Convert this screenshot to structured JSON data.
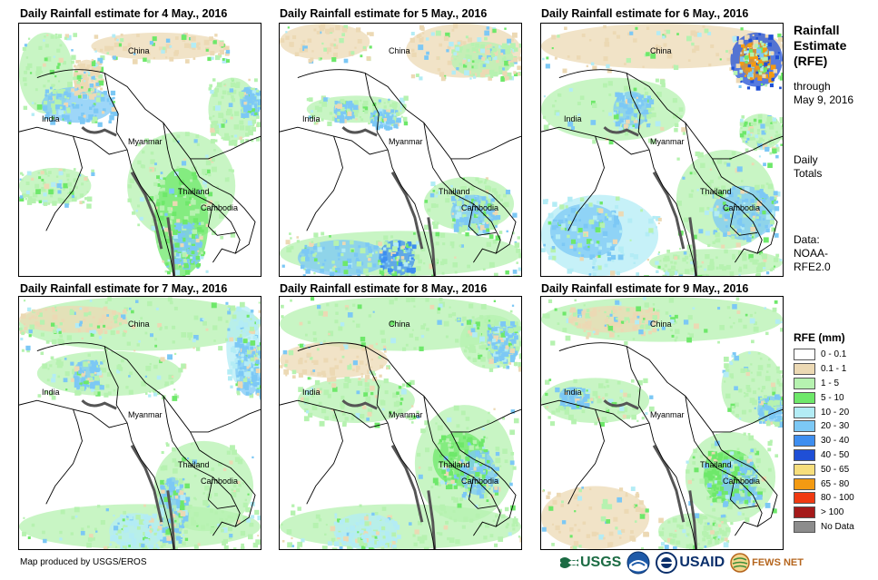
{
  "panels": [
    {
      "title": "Daily Rainfall estimate for 4 May., 2016",
      "labels": {
        "china": "China",
        "india": "India",
        "myanmar": "Myanmar",
        "thailand": "Thailand",
        "cambodia": "Cambodia"
      }
    },
    {
      "title": "Daily Rainfall estimate for 5 May., 2016",
      "labels": {
        "china": "China",
        "india": "India",
        "myanmar": "Myanmar",
        "thailand": "Thailand",
        "cambodia": "Cambodia"
      }
    },
    {
      "title": "Daily Rainfall estimate for 6 May., 2016",
      "labels": {
        "china": "China",
        "india": "India",
        "myanmar": "Myanmar",
        "thailand": "Thailand",
        "cambodia": "Cambodia"
      }
    },
    {
      "title": "Daily Rainfall estimate for 7 May., 2016",
      "labels": {
        "china": "China",
        "india": "India",
        "myanmar": "Myanmar",
        "thailand": "Thailand",
        "cambodia": "Cambodia"
      }
    },
    {
      "title": "Daily Rainfall estimate for 8 May., 2016",
      "labels": {
        "china": "China",
        "india": "India",
        "myanmar": "Myanmar",
        "thailand": "Thailand",
        "cambodia": "Cambodia"
      }
    },
    {
      "title": "Daily Rainfall estimate for 9 May., 2016",
      "labels": {
        "china": "China",
        "india": "India",
        "myanmar": "Myanmar",
        "thailand": "Thailand",
        "cambodia": "Cambodia"
      }
    }
  ],
  "sidebar": {
    "title_line1": "Rainfall",
    "title_line2": "Estimate",
    "title_line3": "(RFE)",
    "through_label": "through",
    "through_date": "May 9, 2016",
    "totals_line1": "Daily",
    "totals_line2": "Totals",
    "data_line1": "Data:",
    "data_line2": "NOAA-",
    "data_line3": "RFE2.0"
  },
  "legend": {
    "title": "RFE (mm)",
    "items": [
      {
        "label": "0 - 0.1",
        "color": "#ffffff"
      },
      {
        "label": "0.1 - 1",
        "color": "#ecd9b4"
      },
      {
        "label": "1 - 5",
        "color": "#b6f2b0"
      },
      {
        "label": "5 - 10",
        "color": "#6ee86a"
      },
      {
        "label": "10 - 20",
        "color": "#b3ecf5"
      },
      {
        "label": "20 - 30",
        "color": "#7cc8f5"
      },
      {
        "label": "30 - 40",
        "color": "#3e8ef0"
      },
      {
        "label": "40 - 50",
        "color": "#1f4fd6"
      },
      {
        "label": "50 - 65",
        "color": "#f7de7c"
      },
      {
        "label": "65 - 80",
        "color": "#f39a12"
      },
      {
        "label": "80 - 100",
        "color": "#f03a12"
      },
      {
        "label": "> 100",
        "color": "#a51a1a"
      },
      {
        "label": "No Data",
        "color": "#8c8c8c"
      }
    ]
  },
  "footer": {
    "credit": "Map produced by USGS/EROS",
    "logo_usgs": "USGS",
    "logo_usaid": "USAID",
    "logo_fewsnet": "FEWS NET"
  }
}
